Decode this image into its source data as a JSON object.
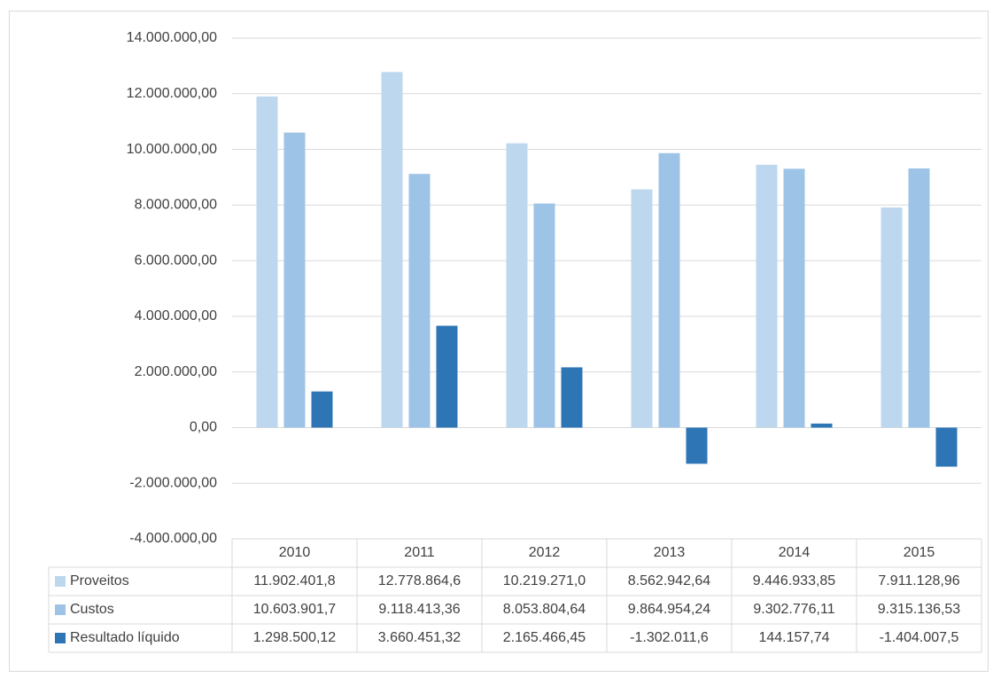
{
  "chart_data": {
    "type": "bar",
    "categories": [
      "2010",
      "2011",
      "2012",
      "2013",
      "2014",
      "2015"
    ],
    "series": [
      {
        "name": "Proveitos",
        "color": "#bdd7ee",
        "values": [
          11902401.8,
          12778864.6,
          10219271.0,
          8562942.64,
          9446933.85,
          7911128.96
        ],
        "value_labels": [
          "11.902.401,8",
          "12.778.864,6",
          "10.219.271,0",
          "8.562.942,64",
          "9.446.933,85",
          "7.911.128,96"
        ]
      },
      {
        "name": "Custos",
        "color": "#9dc3e6",
        "values": [
          10603901.7,
          9118413.36,
          8053804.64,
          9864954.24,
          9302776.11,
          9315136.53
        ],
        "value_labels": [
          "10.603.901,7",
          "9.118.413,36",
          "8.053.804,64",
          "9.864.954,24",
          "9.302.776,11",
          "9.315.136,53"
        ]
      },
      {
        "name": "Resultado líquido",
        "color": "#2e75b6",
        "values": [
          1298500.12,
          3660451.32,
          2165466.45,
          -1302011.6,
          144157.74,
          -1404007.5
        ],
        "value_labels": [
          "1.298.500,12",
          "3.660.451,32",
          "2.165.466,45",
          "-1.302.011,6",
          "144.157,74",
          "-1.404.007,5"
        ]
      }
    ],
    "ylim": [
      -4000000,
      14000000
    ],
    "yticks": [
      {
        "value": -4000000,
        "label": "-4.000.000,00"
      },
      {
        "value": -2000000,
        "label": "-2.000.000,00"
      },
      {
        "value": 0,
        "label": "0,00"
      },
      {
        "value": 2000000,
        "label": "2.000.000,00"
      },
      {
        "value": 4000000,
        "label": "4.000.000,00"
      },
      {
        "value": 6000000,
        "label": "6.000.000,00"
      },
      {
        "value": 8000000,
        "label": "8.000.000,00"
      },
      {
        "value": 10000000,
        "label": "10.000.000,00"
      },
      {
        "value": 12000000,
        "label": "12.000.000,00"
      },
      {
        "value": 14000000,
        "label": "14.000.000,00"
      }
    ],
    "grid": true
  }
}
